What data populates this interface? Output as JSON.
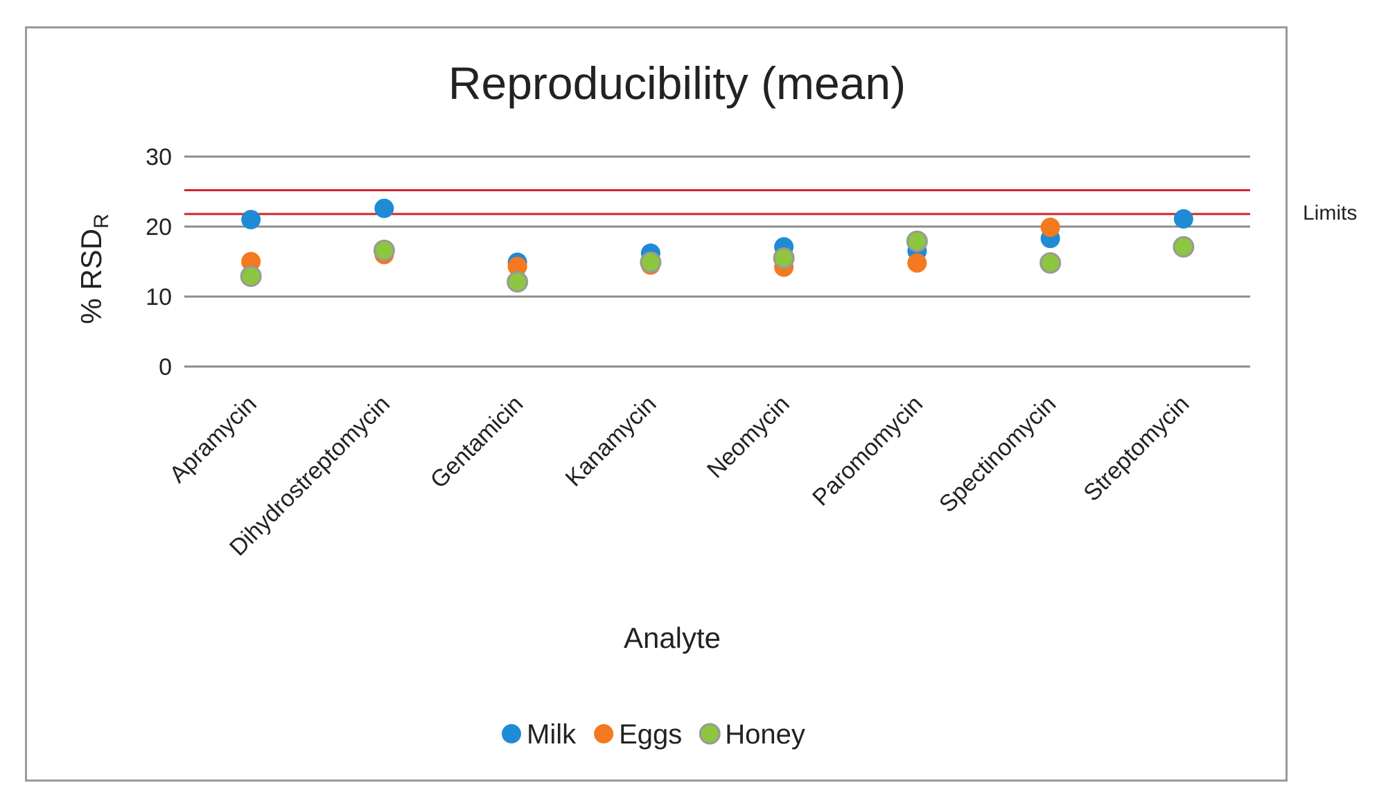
{
  "chart_data": {
    "type": "scatter",
    "title": "Reproducibility (mean)",
    "xlabel": "Analyte",
    "ylabel": {
      "main": "% RSD",
      "subscript": "R"
    },
    "ylim": [
      0,
      30
    ],
    "yticks": [
      0,
      10,
      20,
      30
    ],
    "grid": true,
    "categories": [
      "Apramycin",
      "Dihydrostreptomycin",
      "Gentamicin",
      "Kanamycin",
      "Neomycin",
      "Paromomycin",
      "Spectinomycin",
      "Streptomycin"
    ],
    "series": [
      {
        "name": "Milk",
        "color": "#1f8bd4",
        "values": [
          21.0,
          22.6,
          14.9,
          16.2,
          17.1,
          16.5,
          18.3,
          21.1
        ]
      },
      {
        "name": "Eggs",
        "color": "#f47920",
        "values": [
          15.0,
          16.0,
          14.3,
          14.5,
          14.2,
          14.8,
          19.9,
          17.0
        ]
      },
      {
        "name": "Honey",
        "color": "#8dc63f",
        "edge": "#999999",
        "values": [
          12.9,
          16.6,
          12.1,
          14.9,
          15.5,
          17.9,
          14.8,
          17.1
        ]
      }
    ],
    "limits": {
      "label": "Limits",
      "values": [
        25.2,
        21.8
      ],
      "color": "#d6222a"
    },
    "legend": "bottom-center"
  },
  "colors": {
    "grid": "#8c8c8c",
    "frame": "#9a9a9a"
  }
}
